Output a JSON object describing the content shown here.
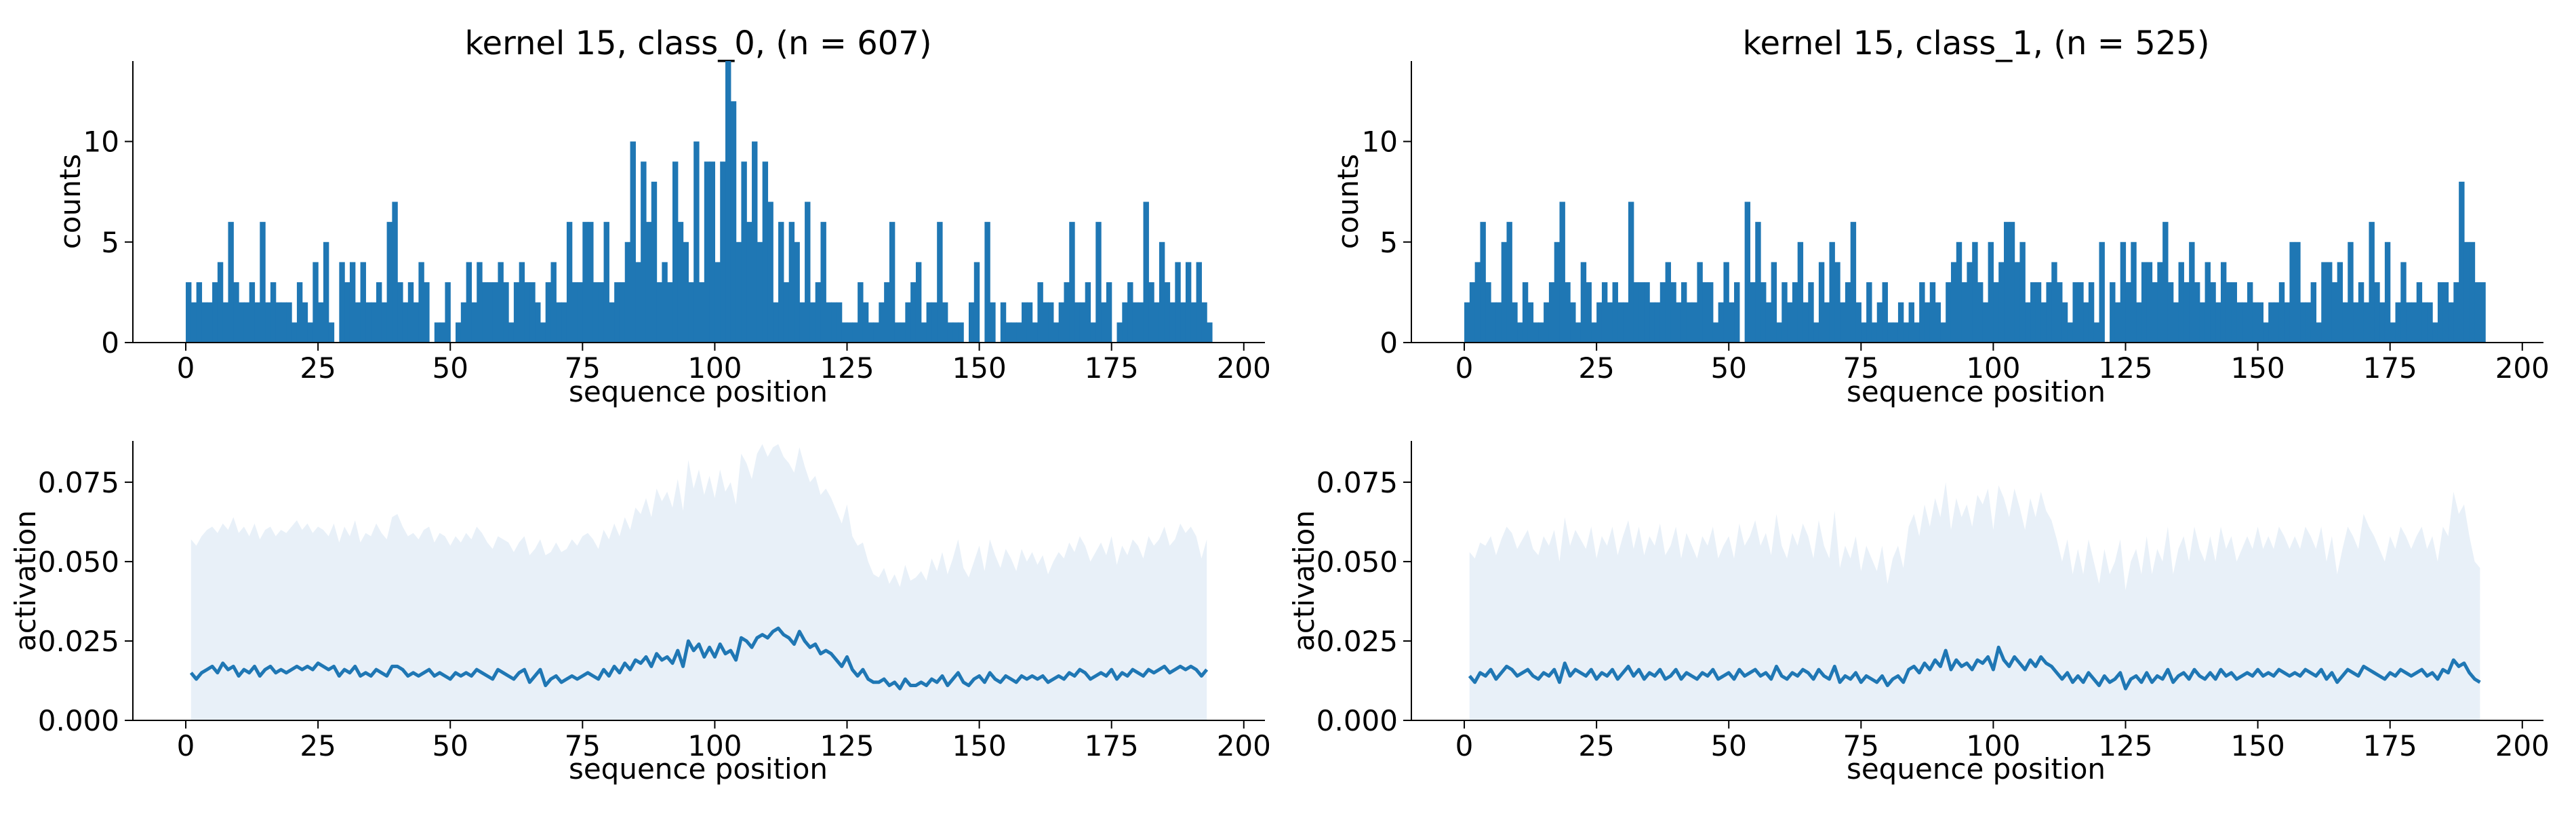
{
  "figure": {
    "colors": {
      "bar": "#1f77b4",
      "line": "#1f77b4",
      "band": "#e8f0f8",
      "axis": "#000000",
      "background": "#ffffff"
    }
  },
  "chart_data": [
    {
      "id": "hist-class0",
      "type": "bar",
      "title": "kernel 15, class_0, (n = 607)",
      "xlabel": "sequence position",
      "ylabel": "counts",
      "xlim": [
        -10,
        204
      ],
      "ylim": [
        0,
        14
      ],
      "xticks": [
        0,
        25,
        50,
        75,
        100,
        125,
        150,
        175,
        200
      ],
      "yticks": [
        0,
        5,
        10
      ],
      "grid": false,
      "x_start": 0,
      "values": [
        3,
        2,
        3,
        2,
        2,
        3,
        4,
        2,
        6,
        3,
        2,
        2,
        3,
        2,
        6,
        2,
        3,
        2,
        2,
        2,
        1,
        3,
        2,
        1,
        4,
        2,
        5,
        1,
        0,
        4,
        3,
        4,
        2,
        4,
        2,
        2,
        3,
        2,
        6,
        7,
        3,
        2,
        3,
        2,
        4,
        3,
        0,
        1,
        1,
        3,
        0,
        1,
        2,
        4,
        2,
        4,
        3,
        3,
        3,
        4,
        3,
        1,
        3,
        4,
        3,
        3,
        2,
        1,
        3,
        4,
        2,
        2,
        6,
        3,
        3,
        6,
        6,
        3,
        3,
        6,
        2,
        3,
        3,
        5,
        10,
        4,
        9,
        6,
        8,
        3,
        4,
        3,
        9,
        6,
        5,
        3,
        10,
        3,
        9,
        9,
        4,
        9,
        14,
        12,
        5,
        9,
        6,
        10,
        5,
        9,
        7,
        2,
        6,
        3,
        6,
        5,
        2,
        7,
        2,
        3,
        6,
        2,
        2,
        2,
        1,
        1,
        1,
        3,
        2,
        1,
        1,
        2,
        3,
        6,
        1,
        1,
        2,
        3,
        4,
        1,
        2,
        2,
        6,
        2,
        1,
        1,
        1,
        0,
        2,
        4,
        0,
        6,
        2,
        0,
        2,
        1,
        1,
        1,
        2,
        2,
        1,
        3,
        2,
        2,
        1,
        2,
        3,
        6,
        2,
        2,
        3,
        1,
        6,
        2,
        3,
        0,
        1,
        2,
        3,
        2,
        2,
        7,
        3,
        2,
        5,
        3,
        2,
        4,
        2,
        4,
        2,
        4,
        2,
        1
      ],
      "bar_labels": []
    },
    {
      "id": "hist-class1",
      "type": "bar",
      "title": "kernel 15, class_1, (n = 525)",
      "xlabel": "sequence position",
      "ylabel": "counts",
      "xlim": [
        -10,
        204
      ],
      "ylim": [
        0,
        14
      ],
      "xticks": [
        0,
        25,
        50,
        75,
        100,
        125,
        150,
        175,
        200
      ],
      "yticks": [
        0,
        5,
        10
      ],
      "grid": false,
      "x_start": 0,
      "values": [
        2,
        3,
        4,
        6,
        3,
        2,
        2,
        5,
        6,
        2,
        1,
        3,
        2,
        1,
        1,
        2,
        3,
        5,
        7,
        3,
        2,
        1,
        4,
        3,
        1,
        2,
        3,
        2,
        3,
        2,
        2,
        7,
        3,
        3,
        3,
        2,
        2,
        3,
        4,
        3,
        2,
        3,
        2,
        2,
        4,
        3,
        3,
        1,
        2,
        4,
        2,
        3,
        0,
        7,
        3,
        6,
        3,
        2,
        4,
        1,
        3,
        2,
        3,
        5,
        2,
        3,
        1,
        4,
        2,
        5,
        4,
        2,
        3,
        6,
        2,
        1,
        3,
        1,
        2,
        3,
        1,
        1,
        2,
        1,
        2,
        1,
        3,
        2,
        3,
        2,
        1,
        3,
        4,
        5,
        3,
        4,
        5,
        3,
        2,
        5,
        3,
        4,
        6,
        6,
        4,
        5,
        2,
        3,
        3,
        2,
        3,
        4,
        3,
        2,
        1,
        3,
        3,
        2,
        3,
        1,
        5,
        0,
        3,
        2,
        5,
        3,
        5,
        2,
        4,
        4,
        3,
        4,
        6,
        3,
        2,
        4,
        3,
        5,
        3,
        2,
        4,
        3,
        2,
        4,
        3,
        3,
        2,
        2,
        3,
        2,
        2,
        1,
        2,
        2,
        3,
        2,
        5,
        5,
        2,
        2,
        3,
        1,
        4,
        4,
        3,
        4,
        2,
        5,
        2,
        3,
        2,
        6,
        3,
        2,
        5,
        1,
        2,
        4,
        2,
        2,
        3,
        2,
        2,
        1,
        3,
        3,
        2,
        3,
        8,
        5,
        5,
        3,
        3
      ]
    },
    {
      "id": "act-class0",
      "type": "line",
      "xlabel": "sequence position",
      "ylabel": "activation",
      "xlim": [
        -10,
        204
      ],
      "ylim": [
        0,
        0.088
      ],
      "xticks": [
        0,
        25,
        50,
        75,
        100,
        125,
        150,
        175,
        200
      ],
      "yticks": [
        "0.000",
        "0.025",
        "0.050",
        "0.075"
      ],
      "ytick_values": [
        0,
        0.025,
        0.05,
        0.075
      ],
      "grid": false,
      "x_start": 1,
      "band_bottom": 0,
      "mean": [
        0.015,
        0.013,
        0.015,
        0.016,
        0.017,
        0.015,
        0.018,
        0.016,
        0.017,
        0.014,
        0.016,
        0.015,
        0.017,
        0.014,
        0.016,
        0.017,
        0.015,
        0.016,
        0.015,
        0.016,
        0.017,
        0.016,
        0.017,
        0.016,
        0.018,
        0.017,
        0.016,
        0.017,
        0.014,
        0.016,
        0.015,
        0.017,
        0.014,
        0.015,
        0.014,
        0.016,
        0.015,
        0.014,
        0.017,
        0.017,
        0.016,
        0.014,
        0.015,
        0.014,
        0.015,
        0.016,
        0.014,
        0.015,
        0.014,
        0.013,
        0.015,
        0.014,
        0.015,
        0.014,
        0.016,
        0.015,
        0.014,
        0.013,
        0.016,
        0.015,
        0.014,
        0.013,
        0.015,
        0.016,
        0.012,
        0.014,
        0.016,
        0.011,
        0.013,
        0.014,
        0.012,
        0.013,
        0.014,
        0.013,
        0.014,
        0.015,
        0.014,
        0.013,
        0.016,
        0.014,
        0.017,
        0.015,
        0.018,
        0.016,
        0.019,
        0.018,
        0.02,
        0.017,
        0.021,
        0.019,
        0.02,
        0.018,
        0.022,
        0.017,
        0.025,
        0.022,
        0.024,
        0.02,
        0.023,
        0.02,
        0.024,
        0.021,
        0.022,
        0.019,
        0.026,
        0.025,
        0.023,
        0.026,
        0.027,
        0.026,
        0.028,
        0.029,
        0.027,
        0.026,
        0.024,
        0.028,
        0.025,
        0.023,
        0.024,
        0.021,
        0.022,
        0.021,
        0.019,
        0.017,
        0.02,
        0.016,
        0.014,
        0.016,
        0.013,
        0.012,
        0.012,
        0.013,
        0.011,
        0.012,
        0.01,
        0.013,
        0.011,
        0.011,
        0.012,
        0.011,
        0.013,
        0.012,
        0.014,
        0.011,
        0.013,
        0.015,
        0.012,
        0.011,
        0.013,
        0.014,
        0.012,
        0.015,
        0.013,
        0.012,
        0.014,
        0.013,
        0.012,
        0.014,
        0.013,
        0.014,
        0.013,
        0.014,
        0.012,
        0.013,
        0.014,
        0.013,
        0.015,
        0.014,
        0.016,
        0.015,
        0.013,
        0.014,
        0.015,
        0.014,
        0.016,
        0.013,
        0.015,
        0.014,
        0.016,
        0.015,
        0.014,
        0.016,
        0.015,
        0.016,
        0.017,
        0.015,
        0.016,
        0.017,
        0.016,
        0.017,
        0.016,
        0.014,
        0.016
      ],
      "band_top": [
        0.057,
        0.055,
        0.058,
        0.06,
        0.061,
        0.059,
        0.062,
        0.06,
        0.064,
        0.059,
        0.061,
        0.058,
        0.062,
        0.057,
        0.06,
        0.061,
        0.058,
        0.06,
        0.059,
        0.061,
        0.063,
        0.06,
        0.062,
        0.059,
        0.061,
        0.06,
        0.058,
        0.062,
        0.056,
        0.061,
        0.058,
        0.063,
        0.056,
        0.059,
        0.058,
        0.062,
        0.059,
        0.057,
        0.064,
        0.065,
        0.061,
        0.058,
        0.059,
        0.057,
        0.06,
        0.061,
        0.056,
        0.059,
        0.058,
        0.055,
        0.058,
        0.056,
        0.059,
        0.057,
        0.061,
        0.059,
        0.056,
        0.054,
        0.058,
        0.057,
        0.056,
        0.053,
        0.056,
        0.058,
        0.052,
        0.054,
        0.057,
        0.052,
        0.053,
        0.056,
        0.053,
        0.054,
        0.057,
        0.055,
        0.058,
        0.059,
        0.057,
        0.054,
        0.06,
        0.057,
        0.062,
        0.058,
        0.064,
        0.06,
        0.067,
        0.065,
        0.07,
        0.064,
        0.073,
        0.069,
        0.072,
        0.067,
        0.076,
        0.066,
        0.082,
        0.073,
        0.079,
        0.071,
        0.077,
        0.07,
        0.079,
        0.072,
        0.075,
        0.068,
        0.084,
        0.081,
        0.076,
        0.084,
        0.087,
        0.083,
        0.086,
        0.087,
        0.083,
        0.081,
        0.078,
        0.086,
        0.08,
        0.075,
        0.077,
        0.071,
        0.073,
        0.07,
        0.066,
        0.062,
        0.068,
        0.058,
        0.055,
        0.056,
        0.05,
        0.046,
        0.045,
        0.048,
        0.043,
        0.046,
        0.042,
        0.049,
        0.044,
        0.045,
        0.047,
        0.044,
        0.051,
        0.047,
        0.053,
        0.046,
        0.051,
        0.057,
        0.048,
        0.045,
        0.05,
        0.055,
        0.047,
        0.057,
        0.052,
        0.048,
        0.054,
        0.051,
        0.047,
        0.054,
        0.05,
        0.053,
        0.049,
        0.052,
        0.046,
        0.05,
        0.053,
        0.051,
        0.056,
        0.053,
        0.058,
        0.055,
        0.05,
        0.053,
        0.056,
        0.052,
        0.058,
        0.049,
        0.055,
        0.052,
        0.057,
        0.055,
        0.051,
        0.058,
        0.055,
        0.057,
        0.061,
        0.055,
        0.057,
        0.062,
        0.059,
        0.061,
        0.058,
        0.051,
        0.057
      ]
    },
    {
      "id": "act-class1",
      "type": "line",
      "xlabel": "sequence position",
      "ylabel": "activation",
      "xlim": [
        -10,
        204
      ],
      "ylim": [
        0,
        0.088
      ],
      "xticks": [
        0,
        25,
        50,
        75,
        100,
        125,
        150,
        175,
        200
      ],
      "yticks": [
        "0.000",
        "0.025",
        "0.050",
        "0.075"
      ],
      "ytick_values": [
        0,
        0.025,
        0.05,
        0.075
      ],
      "grid": false,
      "x_start": 1,
      "band_bottom": 0,
      "mean": [
        0.014,
        0.012,
        0.015,
        0.014,
        0.016,
        0.013,
        0.015,
        0.017,
        0.016,
        0.014,
        0.015,
        0.016,
        0.014,
        0.013,
        0.015,
        0.014,
        0.016,
        0.012,
        0.018,
        0.014,
        0.016,
        0.015,
        0.014,
        0.016,
        0.013,
        0.015,
        0.014,
        0.016,
        0.013,
        0.015,
        0.017,
        0.014,
        0.016,
        0.013,
        0.015,
        0.014,
        0.016,
        0.013,
        0.014,
        0.016,
        0.013,
        0.015,
        0.014,
        0.013,
        0.015,
        0.014,
        0.016,
        0.013,
        0.014,
        0.015,
        0.013,
        0.016,
        0.014,
        0.015,
        0.016,
        0.014,
        0.015,
        0.013,
        0.017,
        0.014,
        0.013,
        0.015,
        0.014,
        0.016,
        0.015,
        0.013,
        0.016,
        0.014,
        0.013,
        0.017,
        0.012,
        0.014,
        0.013,
        0.015,
        0.012,
        0.014,
        0.013,
        0.012,
        0.014,
        0.011,
        0.013,
        0.014,
        0.012,
        0.016,
        0.017,
        0.015,
        0.018,
        0.016,
        0.019,
        0.017,
        0.022,
        0.016,
        0.019,
        0.017,
        0.018,
        0.016,
        0.019,
        0.018,
        0.02,
        0.016,
        0.023,
        0.019,
        0.017,
        0.02,
        0.018,
        0.016,
        0.019,
        0.017,
        0.02,
        0.018,
        0.017,
        0.015,
        0.013,
        0.015,
        0.012,
        0.014,
        0.012,
        0.015,
        0.013,
        0.011,
        0.014,
        0.012,
        0.013,
        0.015,
        0.01,
        0.013,
        0.014,
        0.012,
        0.015,
        0.012,
        0.014,
        0.013,
        0.016,
        0.012,
        0.014,
        0.015,
        0.013,
        0.016,
        0.014,
        0.013,
        0.015,
        0.013,
        0.016,
        0.014,
        0.015,
        0.013,
        0.014,
        0.015,
        0.014,
        0.016,
        0.014,
        0.015,
        0.014,
        0.016,
        0.015,
        0.014,
        0.015,
        0.014,
        0.016,
        0.015,
        0.014,
        0.016,
        0.013,
        0.015,
        0.012,
        0.014,
        0.016,
        0.015,
        0.014,
        0.017,
        0.016,
        0.015,
        0.014,
        0.013,
        0.015,
        0.014,
        0.016,
        0.015,
        0.014,
        0.015,
        0.016,
        0.014,
        0.015,
        0.013,
        0.016,
        0.015,
        0.019,
        0.017,
        0.018,
        0.015,
        0.013,
        0.012
      ],
      "band_top": [
        0.053,
        0.051,
        0.056,
        0.055,
        0.058,
        0.052,
        0.057,
        0.061,
        0.059,
        0.054,
        0.057,
        0.06,
        0.054,
        0.052,
        0.058,
        0.055,
        0.06,
        0.05,
        0.064,
        0.055,
        0.06,
        0.057,
        0.054,
        0.061,
        0.051,
        0.058,
        0.055,
        0.061,
        0.052,
        0.058,
        0.063,
        0.054,
        0.061,
        0.052,
        0.058,
        0.055,
        0.062,
        0.052,
        0.055,
        0.061,
        0.051,
        0.059,
        0.055,
        0.051,
        0.058,
        0.055,
        0.061,
        0.051,
        0.055,
        0.058,
        0.051,
        0.062,
        0.055,
        0.058,
        0.063,
        0.055,
        0.059,
        0.052,
        0.065,
        0.055,
        0.051,
        0.059,
        0.055,
        0.062,
        0.058,
        0.051,
        0.063,
        0.055,
        0.051,
        0.066,
        0.048,
        0.055,
        0.051,
        0.058,
        0.047,
        0.055,
        0.051,
        0.047,
        0.055,
        0.043,
        0.051,
        0.055,
        0.048,
        0.061,
        0.065,
        0.058,
        0.068,
        0.061,
        0.07,
        0.064,
        0.075,
        0.06,
        0.07,
        0.064,
        0.068,
        0.061,
        0.071,
        0.068,
        0.073,
        0.06,
        0.074,
        0.07,
        0.064,
        0.073,
        0.067,
        0.06,
        0.07,
        0.064,
        0.072,
        0.066,
        0.063,
        0.057,
        0.05,
        0.057,
        0.046,
        0.054,
        0.046,
        0.057,
        0.05,
        0.043,
        0.054,
        0.046,
        0.05,
        0.057,
        0.041,
        0.05,
        0.054,
        0.046,
        0.058,
        0.046,
        0.054,
        0.05,
        0.061,
        0.046,
        0.054,
        0.058,
        0.05,
        0.061,
        0.054,
        0.05,
        0.058,
        0.05,
        0.061,
        0.054,
        0.058,
        0.05,
        0.054,
        0.058,
        0.054,
        0.061,
        0.054,
        0.058,
        0.054,
        0.061,
        0.058,
        0.054,
        0.058,
        0.054,
        0.061,
        0.058,
        0.054,
        0.061,
        0.05,
        0.058,
        0.046,
        0.054,
        0.061,
        0.058,
        0.054,
        0.065,
        0.061,
        0.058,
        0.054,
        0.05,
        0.058,
        0.054,
        0.061,
        0.058,
        0.054,
        0.058,
        0.061,
        0.054,
        0.058,
        0.05,
        0.061,
        0.058,
        0.072,
        0.065,
        0.068,
        0.058,
        0.05,
        0.048
      ]
    }
  ]
}
